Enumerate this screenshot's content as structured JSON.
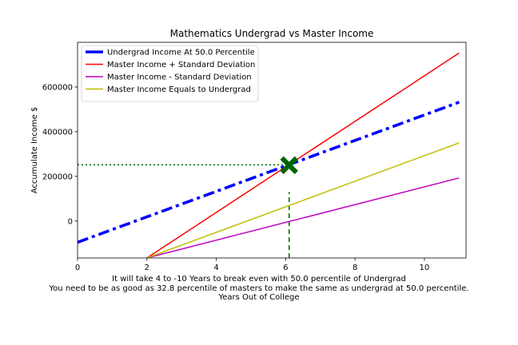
{
  "chart_data": {
    "type": "line",
    "title": "Mathematics Undergrad vs Master Income",
    "ylabel": "Accumulate Income $",
    "xlabel_lines": [
      "It will take 4 to -10 Years to break even with 50.0 percentile of Undergrad",
      "You need to be as good as 32.8 percentile of masters to make the same as undergrad at 50.0 percentile.",
      "Years Out of College"
    ],
    "xlim": [
      0,
      11.2
    ],
    "ylim": [
      -165000,
      800000
    ],
    "xticks": [
      0,
      2,
      4,
      6,
      8,
      10
    ],
    "yticks": [
      0,
      200000,
      400000,
      600000
    ],
    "grid": false,
    "legend_position": "top-left",
    "series": [
      {
        "name": "Undergrad Income At 50.0 Percentile",
        "color": "#0000ff",
        "style": "dashdot-thick",
        "points": [
          [
            0,
            -95000
          ],
          [
            11,
            532000
          ]
        ]
      },
      {
        "name": "Master Income + Standard Deviation",
        "color": "#ff0000",
        "style": "solid",
        "points": [
          [
            2,
            -165000
          ],
          [
            11,
            752000
          ]
        ]
      },
      {
        "name": "Master Income - Standard Deviation",
        "color": "#bf00bf",
        "style": "solid",
        "points": [
          [
            2,
            -165000
          ],
          [
            11,
            193000
          ]
        ]
      },
      {
        "name": "Master Income Equals to Undergrad",
        "color": "#bfbf00",
        "style": "solid",
        "points": [
          [
            2,
            -165000
          ],
          [
            11,
            350000
          ]
        ]
      }
    ],
    "markers": [
      {
        "label": "break-even",
        "x": 6.1,
        "y": 250000,
        "color": "#006400",
        "symbol": "X"
      }
    ],
    "reference_lines": [
      {
        "orientation": "horizontal",
        "y": 252000,
        "x_from": 0,
        "x_to": 6.1,
        "color": "#006400",
        "style": "dotted"
      },
      {
        "orientation": "vertical",
        "x": 6.1,
        "y_from": -165000,
        "y_to": 130000,
        "color": "#006400",
        "style": "dashed"
      }
    ]
  }
}
